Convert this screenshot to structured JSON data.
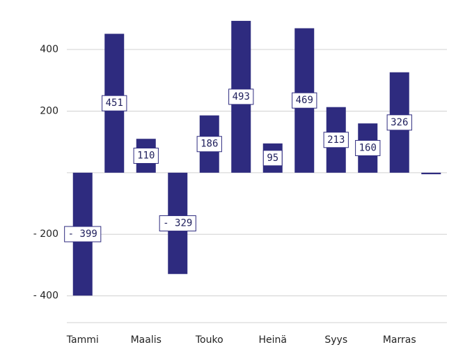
{
  "chart_data": {
    "type": "bar",
    "categories": [
      "Tammi",
      null,
      "Maalis",
      null,
      "Touko",
      null,
      "Heinä",
      null,
      "Syys",
      null,
      "Marras",
      null
    ],
    "values": [
      -399,
      451,
      110,
      -329,
      186,
      493,
      95,
      469,
      213,
      160,
      326,
      -5
    ],
    "value_labels": [
      "- 399",
      "451",
      "110",
      "- 329",
      "186",
      "493",
      "95",
      "469",
      "213",
      "160",
      "326",
      null
    ],
    "color": "#2e2b7f",
    "ylim": [
      -480,
      520
    ],
    "yticks": [
      {
        "value": -400,
        "label": "- 400"
      },
      {
        "value": -200,
        "label": "- 200"
      },
      200,
      400
    ],
    "grid": true
  }
}
